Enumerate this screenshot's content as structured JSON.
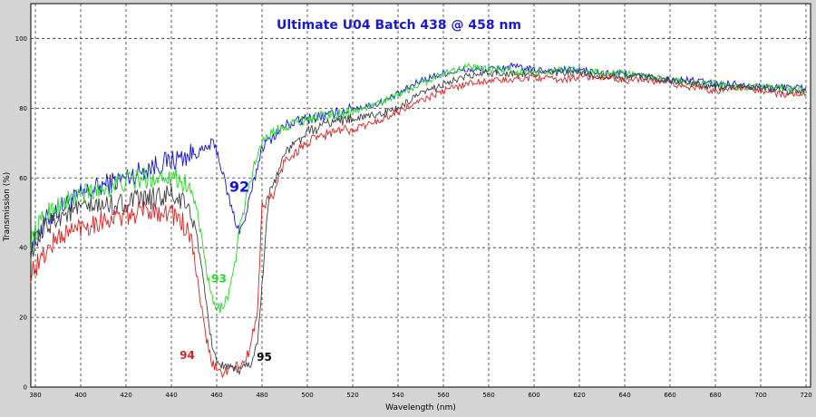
{
  "chart_data": {
    "type": "line",
    "title": "Ultimate U04 Batch 438 @ 458 nm",
    "xlabel": "Wavelength (nm)",
    "ylabel": "Transmission (%)",
    "xlim": [
      378,
      722
    ],
    "ylim": [
      0,
      110
    ],
    "x_ticks": [
      380,
      400,
      420,
      440,
      460,
      480,
      500,
      520,
      540,
      560,
      580,
      600,
      620,
      640,
      660,
      680,
      700,
      720
    ],
    "y_ticks": [
      0,
      20,
      40,
      60,
      80,
      100
    ],
    "grid": true,
    "legend": "inline labels on curves",
    "series": [
      {
        "name": "92",
        "color": "#1010e0",
        "label_at": [
          390,
          60
        ],
        "x": [
          378,
          385,
          390,
          400,
          410,
          420,
          430,
          440,
          445,
          450,
          455,
          458,
          460,
          462,
          465,
          468,
          470,
          472,
          475,
          480,
          490,
          500,
          510,
          520,
          530,
          540,
          550,
          560,
          570,
          580,
          590,
          600,
          610,
          620,
          630,
          640,
          650,
          660,
          670,
          680,
          690,
          700,
          710,
          720
        ],
        "y": [
          40,
          48,
          51,
          55,
          58,
          60,
          63,
          65,
          66,
          67,
          68,
          70,
          68,
          63,
          55,
          48,
          45,
          47,
          55,
          69,
          75,
          77,
          78,
          80,
          81,
          84,
          88,
          90,
          91,
          91,
          92,
          91,
          91,
          91,
          90,
          90,
          89,
          88,
          88,
          87,
          87,
          86,
          86,
          86
        ]
      },
      {
        "name": "93",
        "color": "#20d820",
        "label_at": [
          390,
          30
        ],
        "x": [
          378,
          385,
          390,
          400,
          410,
          420,
          430,
          440,
          445,
          448,
          450,
          452,
          455,
          458,
          460,
          462,
          465,
          468,
          470,
          475,
          480,
          490,
          500,
          510,
          520,
          530,
          540,
          550,
          560,
          570,
          580,
          590,
          600,
          610,
          620,
          630,
          640,
          650,
          660,
          670,
          680,
          690,
          700,
          710,
          720
        ],
        "y": [
          42,
          50,
          52,
          55,
          57,
          59,
          60,
          61,
          59,
          57,
          54,
          48,
          35,
          25,
          22,
          23,
          26,
          35,
          45,
          60,
          71,
          75,
          77,
          78,
          79,
          81,
          84,
          87,
          90,
          92,
          91,
          91,
          90,
          91,
          91,
          90,
          90,
          89,
          88,
          87,
          87,
          86,
          86,
          86,
          85
        ]
      },
      {
        "name": "94",
        "color": "#e02020",
        "label_at": [
          390,
          8
        ],
        "x": [
          378,
          382,
          386,
          390,
          400,
          410,
          420,
          430,
          440,
          445,
          448,
          450,
          452,
          455,
          458,
          460,
          462,
          465,
          470,
          473,
          475,
          478,
          480,
          485,
          490,
          500,
          510,
          520,
          530,
          540,
          550,
          560,
          570,
          580,
          590,
          600,
          610,
          620,
          630,
          640,
          650,
          660,
          670,
          680,
          690,
          700,
          710,
          720
        ],
        "y": [
          33,
          36,
          40,
          43,
          46,
          48,
          49,
          51,
          50,
          47,
          43,
          38,
          28,
          15,
          7,
          5,
          4,
          5,
          6,
          8,
          12,
          22,
          52,
          55,
          65,
          70,
          73,
          74,
          76,
          79,
          82,
          85,
          87,
          88,
          88,
          89,
          88,
          89,
          89,
          88,
          88,
          87,
          86,
          85,
          86,
          85,
          84,
          84
        ]
      },
      {
        "name": "95",
        "color": "#404040",
        "label_at": [
          390,
          8
        ],
        "x": [
          378,
          385,
          390,
          400,
          410,
          420,
          430,
          440,
          445,
          450,
          452,
          455,
          458,
          460,
          462,
          465,
          470,
          475,
          478,
          480,
          483,
          486,
          490,
          500,
          510,
          520,
          530,
          540,
          550,
          560,
          570,
          580,
          590,
          600,
          610,
          620,
          630,
          640,
          650,
          660,
          670,
          680,
          690,
          700,
          710,
          720
        ],
        "y": [
          39,
          46,
          49,
          51,
          52,
          53,
          54,
          55,
          53,
          48,
          40,
          25,
          12,
          8,
          6,
          5,
          5,
          7,
          12,
          30,
          55,
          60,
          67,
          73,
          76,
          77,
          78,
          80,
          84,
          87,
          89,
          90,
          90,
          90,
          90,
          90,
          89,
          89,
          89,
          88,
          87,
          86,
          86,
          86,
          85,
          85
        ]
      }
    ],
    "annotations": [
      {
        "text": "92",
        "x": 470,
        "y": 56,
        "color": "#1010e0",
        "size": "large"
      },
      {
        "text": "93",
        "x": 461,
        "y": 30,
        "color": "#20d820",
        "size": "medium"
      },
      {
        "text": "94",
        "x": 447,
        "y": 8,
        "color": "#e02020",
        "size": "medium"
      },
      {
        "text": "95",
        "x": 481,
        "y": 7.5,
        "color": "#000000",
        "size": "medium"
      }
    ]
  }
}
